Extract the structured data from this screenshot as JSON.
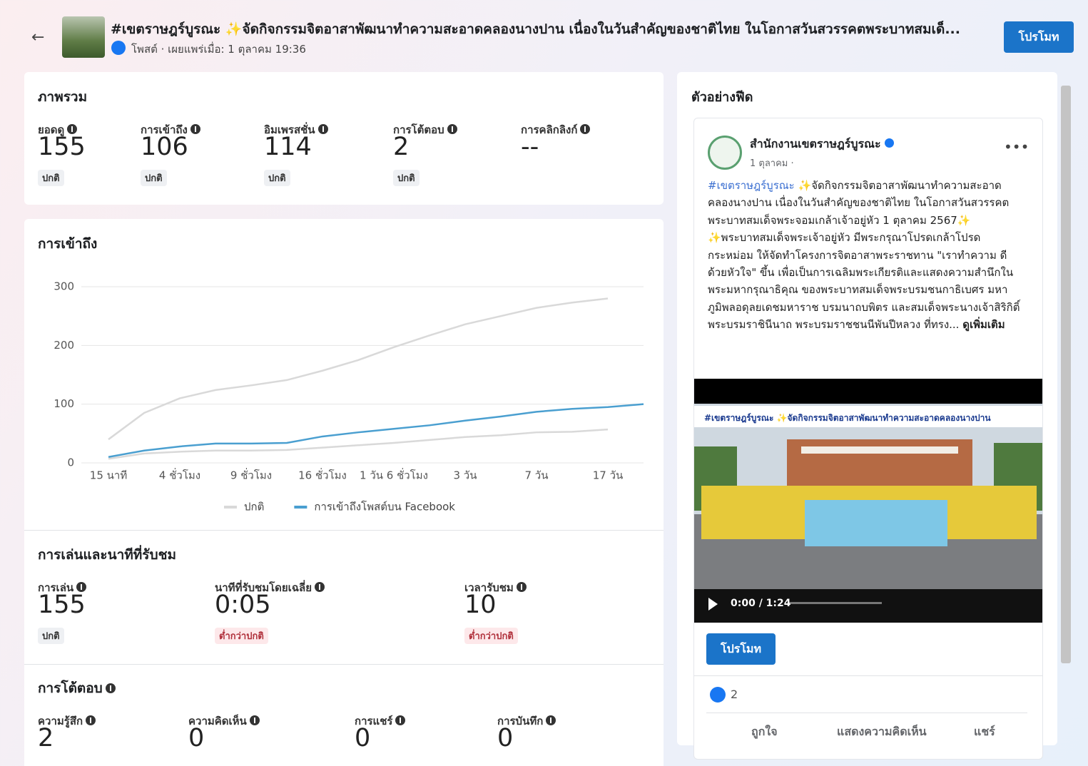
{
  "header": {
    "title": "#เขตราษฎร์บูรณะ ✨จัดกิจกรรมจิตอาสาพัฒนาทำความสะอาดคลองนางปาน เนื่องในวันสำคัญของชาติไทย ในโอกาสวันสวรรคตพระบาทสมเด็...",
    "subtitle": "โพสต์ · เผยแพร่เมื่อ: 1 ตุลาคม 19:36",
    "button": "โปรโมท"
  },
  "overview": {
    "title": "ภาพรวม",
    "metrics": [
      {
        "label": "ยอดดู",
        "value": 155,
        "badge": "ปกติ"
      },
      {
        "label": "การเข้าถึง",
        "value": 106,
        "badge": "ปกติ"
      },
      {
        "label": "อิมเพรสชั่น",
        "value": 114,
        "badge": "ปกติ"
      },
      {
        "label": "การโต้ตอบ",
        "value": 2,
        "badge": "ปกติ"
      },
      {
        "label": "การคลิกลิงก์",
        "value": "--"
      }
    ]
  },
  "reach": {
    "title": "การเข้าถึง",
    "chart": {
      "type": "line",
      "categories": [
        "15 นาที",
        null,
        "4 ชั่วโมง",
        null,
        "9 ชั่วโมง",
        null,
        "16 ชั่วโมง",
        null,
        "1 วัน 6 ชั่วโมง",
        null,
        "3 วัน",
        null,
        "7 วัน",
        null,
        "17 วัน",
        null
      ],
      "ylim": [
        0,
        300
      ],
      "yticks": [
        0,
        100,
        200,
        300
      ],
      "grid": true,
      "series": [
        {
          "name": "ปกติ",
          "color": "#d9d9d9",
          "values": [
            7,
            16,
            19,
            21,
            21,
            22,
            26,
            30,
            34,
            39,
            44,
            47,
            52,
            53,
            57,
            null
          ],
          "upper": [
            40,
            85,
            110,
            124,
            132,
            141,
            157,
            175,
            197,
            217,
            236,
            250,
            264,
            273,
            280,
            null
          ]
        },
        {
          "name": "การเข้าถึงโพสต์บน Facebook",
          "color": "#4a9fd0",
          "values": [
            10,
            21,
            28,
            33,
            33,
            34,
            45,
            52,
            58,
            64,
            72,
            79,
            87,
            92,
            95,
            100
          ]
        }
      ]
    }
  },
  "playback": {
    "title": "การเล่นและนาทีที่รับชม",
    "metrics": [
      {
        "label": "การเล่น",
        "value": 155,
        "badge": "ปกติ"
      },
      {
        "label": "นาทีที่รับชมโดยเฉลี่ย",
        "value": "0:05",
        "badge": "ต่ำกว่าปกติ"
      },
      {
        "label": "เวลารับชม",
        "value": 10,
        "badge": "ต่ำกว่าปกติ"
      }
    ]
  },
  "interactions": {
    "title": "การโต้ตอบ",
    "metrics": [
      {
        "label": "ความรู้สึก",
        "value": 2
      },
      {
        "label": "ความคิดเห็น",
        "value": 0
      },
      {
        "label": "การแชร์",
        "value": 0
      },
      {
        "label": "การบันทึก",
        "value": 0
      }
    ]
  },
  "feed_preview": {
    "title": "ตัวอย่างฟีด",
    "page_name": "สำนักงานเขตราษฎร์บูรณะ",
    "meta": "1 ตุลาคม ·",
    "hashtag": "#เขตราษฎร์บูรณะ",
    "text_1": " ✨จัดกิจกรรมจิตอาสาพัฒนาทำความสะอาดคลองนางปาน เนื่องในวันสำคัญของชาติไทย ในโอกาสวันสวรรคตพระบาทสมเด็จพระจอมเกล้าเจ้าอยู่หัว 1 ตุลาคม 2567✨",
    "text_2": "✨พระบาทสมเด็จพระเจ้าอยู่หัว มีพระกรุณาโปรดเกล้าโปรดกระหม่อม ให้จัดทำโครงการจิตอาสาพระราชทาน \"เราทำความ ดี ด้วยหัวใจ\" ขึ้น เพื่อเป็นการเฉลิมพระเกียรติและแสดงความสำนึกในพระมหากรุณาธิคุณ ของพระบาทสมเด็จพระบรมชนกาธิเบศร มหาภูมิพลอดุลยเดชมหาราช บรมนาถบพิตร และสมเด็จพระนางเจ้าสิริกิติ์ พระบรมราชินีนาถ พระบรมราชชนนีพันปีหลวง ที่ทรง...",
    "see_more": "ดูเพิ่มเติม",
    "video_caption": "#เขตราษฎร์บูรณะ ✨จัดกิจกรรมจิตอาสาพัฒนาทำความสะอาดคลองนางปาน",
    "video_time": "0:00 / 1:24",
    "promote": "โปรโมท",
    "likes": 2,
    "actions": [
      "ถูกใจ",
      "แสดงความคิดเห็น",
      "แชร์"
    ]
  }
}
